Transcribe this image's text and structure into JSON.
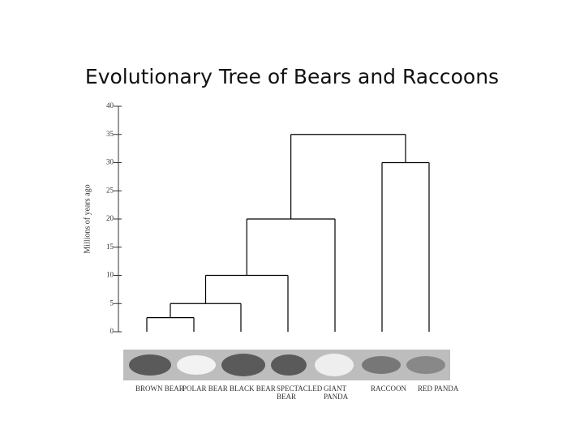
{
  "chart_data": {
    "type": "dendrogram",
    "title": "Evolutionary Tree of Bears and Raccoons",
    "y_label": "Millions of years ago",
    "ylim": [
      0,
      40
    ],
    "yticks": [
      0,
      5,
      10,
      15,
      20,
      25,
      30,
      35,
      40
    ],
    "leaves": [
      "BROWN BEAR",
      "POLAR BEAR",
      "BLACK BEAR",
      "SPECTACLED BEAR",
      "GIANT PANDA",
      "RACCOON",
      "RED PANDA"
    ],
    "merges": [
      {
        "height": 2.5,
        "children": [
          {
            "leaf": 0
          },
          {
            "leaf": 1
          }
        ]
      },
      {
        "height": 5,
        "children": [
          {
            "merge": 0
          },
          {
            "leaf": 2
          }
        ]
      },
      {
        "height": 10,
        "children": [
          {
            "merge": 1
          },
          {
            "leaf": 3
          }
        ]
      },
      {
        "height": 20,
        "children": [
          {
            "merge": 2
          },
          {
            "leaf": 4
          }
        ]
      },
      {
        "height": 30,
        "children": [
          {
            "leaf": 5
          },
          {
            "leaf": 6
          }
        ]
      },
      {
        "height": 35,
        "children": [
          {
            "merge": 3
          },
          {
            "merge": 4
          }
        ]
      }
    ],
    "color": "#000000"
  }
}
